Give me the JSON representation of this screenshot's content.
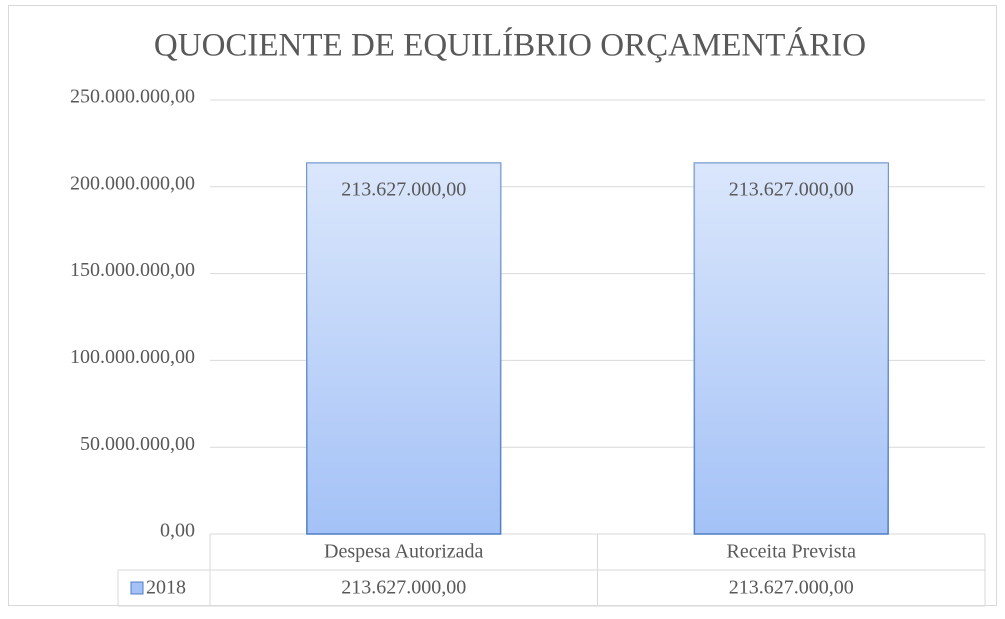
{
  "chart_data": {
    "type": "bar",
    "title": "QUOCIENTE DE EQUILÍBRIO ORÇAMENTÁRIO",
    "categories": [
      "Despesa Autorizada",
      "Receita Prevista"
    ],
    "series": [
      {
        "name": "2018",
        "color": "#a4c2f7",
        "values": [
          213627000,
          213627000
        ],
        "value_labels": [
          "213.627.000,00",
          "213.627.000,00"
        ]
      }
    ],
    "ylim": [
      0,
      250000000
    ],
    "yticks": [
      {
        "value": 0,
        "label": "0,00"
      },
      {
        "value": 50000000,
        "label": "50.000.000,00"
      },
      {
        "value": 100000000,
        "label": "100.000.000,00"
      },
      {
        "value": 150000000,
        "label": "150.000.000,00"
      },
      {
        "value": 200000000,
        "label": "200.000.000,00"
      },
      {
        "value": 250000000,
        "label": "250.000.000,00"
      }
    ],
    "grid": true,
    "data_table": true
  }
}
